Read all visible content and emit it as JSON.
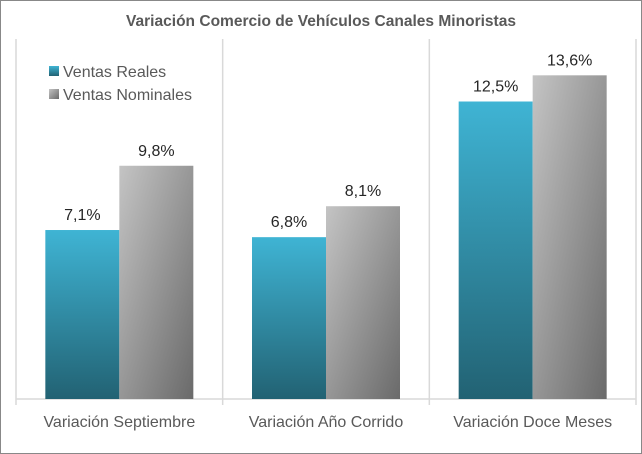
{
  "chart_data": {
    "type": "bar",
    "title": "Variación Comercio de Vehículos Canales Minoristas",
    "categories": [
      "Variación Septiembre",
      "Variación Año Corrido",
      "Variación Doce Meses"
    ],
    "series": [
      {
        "name": "Ventas Reales",
        "values": [
          7.1,
          6.8,
          12.5
        ],
        "labels": [
          "7,1%",
          "6,8%",
          "12,5%"
        ],
        "color_top": "#3fb4d4",
        "color_bottom": "#226273"
      },
      {
        "name": "Ventas Nominales",
        "values": [
          9.8,
          8.1,
          13.6
        ],
        "labels": [
          "9,8%",
          "8,1%",
          "13,6%"
        ],
        "color_top": "#c4c4c4",
        "color_bottom": "#6a6a6a"
      }
    ],
    "xlabel": "",
    "ylabel": "",
    "ylim": [
      0,
      15
    ],
    "grid": false,
    "legend_position": "top-left"
  }
}
